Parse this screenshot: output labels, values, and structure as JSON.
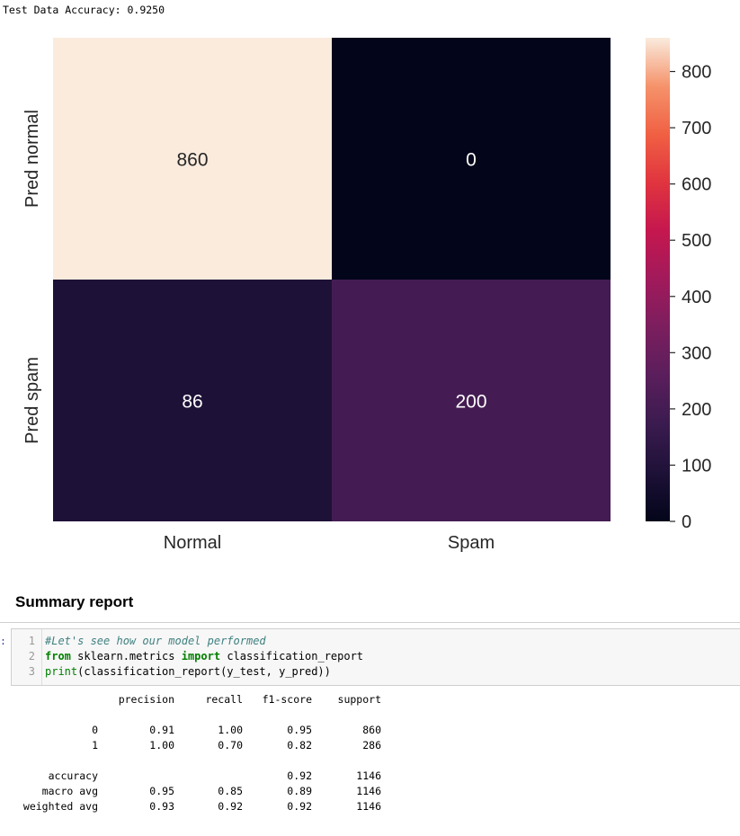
{
  "accuracy_text": "Test Data Accuracy: 0.9250",
  "chart_data": {
    "type": "heatmap",
    "x_categories": [
      "Normal",
      "Spam"
    ],
    "y_categories": [
      "Pred normal",
      "Pred spam"
    ],
    "values": [
      [
        860,
        0
      ],
      [
        86,
        200
      ]
    ],
    "colorbar": {
      "min": 0,
      "max": 860,
      "ticks": [
        0,
        100,
        200,
        300,
        400,
        500,
        600,
        700,
        800
      ]
    },
    "colormap": "rocket",
    "annotations": true,
    "title": "",
    "xlabel": "",
    "ylabel": ""
  },
  "summary_heading": "Summary report",
  "prompt_marker": ":",
  "code_cell": {
    "lines": [
      {
        "number": "1",
        "segments": [
          {
            "text": "#Let's see how our model performed",
            "kind": "comment"
          }
        ]
      },
      {
        "number": "2",
        "segments": [
          {
            "text": "from",
            "kind": "keyword"
          },
          {
            "text": " sklearn.metrics ",
            "kind": "plain"
          },
          {
            "text": "import",
            "kind": "keyword"
          },
          {
            "text": " classification_report",
            "kind": "plain"
          }
        ]
      },
      {
        "number": "3",
        "segments": [
          {
            "text": "print",
            "kind": "builtin"
          },
          {
            "text": "(classification_report(y_test, y_pred))",
            "kind": "plain"
          }
        ]
      }
    ]
  },
  "report": {
    "headers": [
      "precision",
      "recall",
      "f1-score",
      "support"
    ],
    "rows": [
      {
        "label": "0",
        "precision": "0.91",
        "recall": "1.00",
        "f1": "0.95",
        "support": "860"
      },
      {
        "label": "1",
        "precision": "1.00",
        "recall": "0.70",
        "f1": "0.82",
        "support": "286"
      },
      {
        "label": "accuracy",
        "precision": "",
        "recall": "",
        "f1": "0.92",
        "support": "1146"
      },
      {
        "label": "macro avg",
        "precision": "0.95",
        "recall": "0.85",
        "f1": "0.89",
        "support": "1146"
      },
      {
        "label": "weighted avg",
        "precision": "0.93",
        "recall": "0.92",
        "f1": "0.92",
        "support": "1146"
      }
    ]
  }
}
